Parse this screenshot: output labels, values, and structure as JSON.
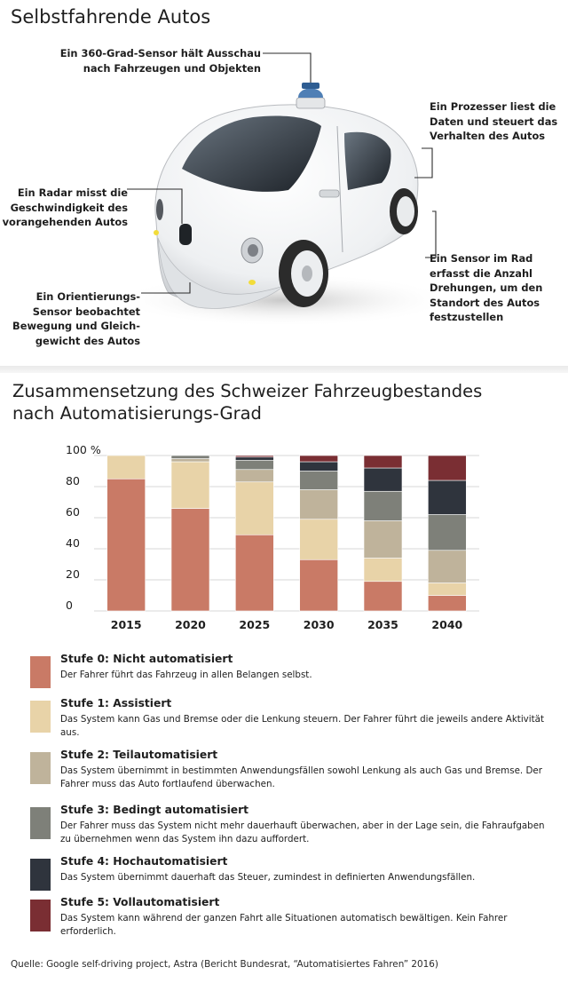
{
  "header": {
    "title": "Selbstfahrende Autos"
  },
  "annotations": {
    "sensor360": [
      "Ein 360-Grad-Sensor hält Ausschau",
      "nach Fahrzeugen und Objekten"
    ],
    "processor": [
      "Ein Prozesser liest die",
      "Daten und steuert das",
      "Verhalten des Autos"
    ],
    "radar": [
      "Ein Radar misst die",
      "Geschwindigkeit des",
      "vorangehenden Autos"
    ],
    "wheel_sensor": [
      "Ein Sensor im Rad",
      "erfasst die Anzahl",
      "Drehungen, um den",
      "Standort des Autos",
      "festzustellen"
    ],
    "orientation": [
      "Ein Orientierungs-",
      "Sensor beobachtet",
      "Bewegung und Gleich-",
      "gewicht des Autos"
    ]
  },
  "chart_title": [
    "Zusammensetzung des Schweizer Fahrzeugbestandes",
    "nach Automatisierungs-Grad"
  ],
  "chart_data": {
    "type": "bar",
    "stacked": true,
    "title": "Zusammensetzung des Schweizer Fahrzeugbestandes nach Automatisierungs-Grad",
    "categories": [
      "2015",
      "2020",
      "2025",
      "2030",
      "2035",
      "2040"
    ],
    "y_ticks": [
      "100 %",
      "80",
      "60",
      "40",
      "20",
      "0"
    ],
    "ylim": [
      0,
      100
    ],
    "grid": true,
    "series": [
      {
        "name": "Stufe 0: Nicht automatisiert",
        "color": "#c97a66",
        "values": [
          85,
          66,
          49,
          33,
          19,
          10
        ]
      },
      {
        "name": "Stufe 1: Assistiert",
        "color": "#e8d3a8",
        "values": [
          15,
          30,
          34,
          26,
          15,
          8
        ]
      },
      {
        "name": "Stufe 2: Teilautomatisiert",
        "color": "#bfb39b",
        "values": [
          0,
          2,
          8,
          19,
          24,
          21
        ]
      },
      {
        "name": "Stufe 3: Bedingt automatisiert",
        "color": "#7e8079",
        "values": [
          0,
          2,
          6,
          12,
          19,
          23
        ]
      },
      {
        "name": "Stufe 4: Hochautomatisiert",
        "color": "#2f343d",
        "values": [
          0,
          0,
          2,
          6,
          15,
          22
        ]
      },
      {
        "name": "Stufe 5: Vollautomatisiert",
        "color": "#7a2e33",
        "values": [
          0,
          0,
          1,
          4,
          8,
          16
        ]
      }
    ]
  },
  "legend": [
    {
      "title": "Stufe 0: Nicht automatisiert",
      "color": "#c97a66",
      "desc": "Der Fahrer führt das Fahrzeug in allen Belangen selbst."
    },
    {
      "title": "Stufe 1: Assistiert",
      "color": "#e8d3a8",
      "desc": "Das System kann Gas und Bremse oder die Lenkung steuern. Der Fahrer führt die jeweils andere Aktivität aus."
    },
    {
      "title": "Stufe 2: Teilautomatisiert",
      "color": "#bfb39b",
      "desc": "Das System übernimmt in bestimmten Anwendungsfällen sowohl Lenkung als auch Gas und Bremse. Der Fahrer muss das Auto fortlaufend überwachen."
    },
    {
      "title": "Stufe 3: Bedingt automatisiert",
      "color": "#7e8079",
      "desc": "Der Fahrer muss das System nicht mehr dauerhauft überwachen, aber in der Lage sein, die Fahraufgaben zu übernehmen wenn das System ihn dazu auffordert."
    },
    {
      "title": "Stufe 4: Hochautomatisiert",
      "color": "#2f343d",
      "desc": "Das System übernimmt dauerhaft das Steuer, zumindest in definierten Anwendungsfällen."
    },
    {
      "title": "Stufe 5: Vollautomatisiert",
      "color": "#7a2e33",
      "desc": "Das System kann während der ganzen Fahrt alle Situationen automatisch bewältigen. Kein Fahrer erforderlich."
    }
  ],
  "source": "Quelle: Google self-driving project,  Astra (Bericht Bundesrat, “Automatisiertes Fahren” 2016)"
}
